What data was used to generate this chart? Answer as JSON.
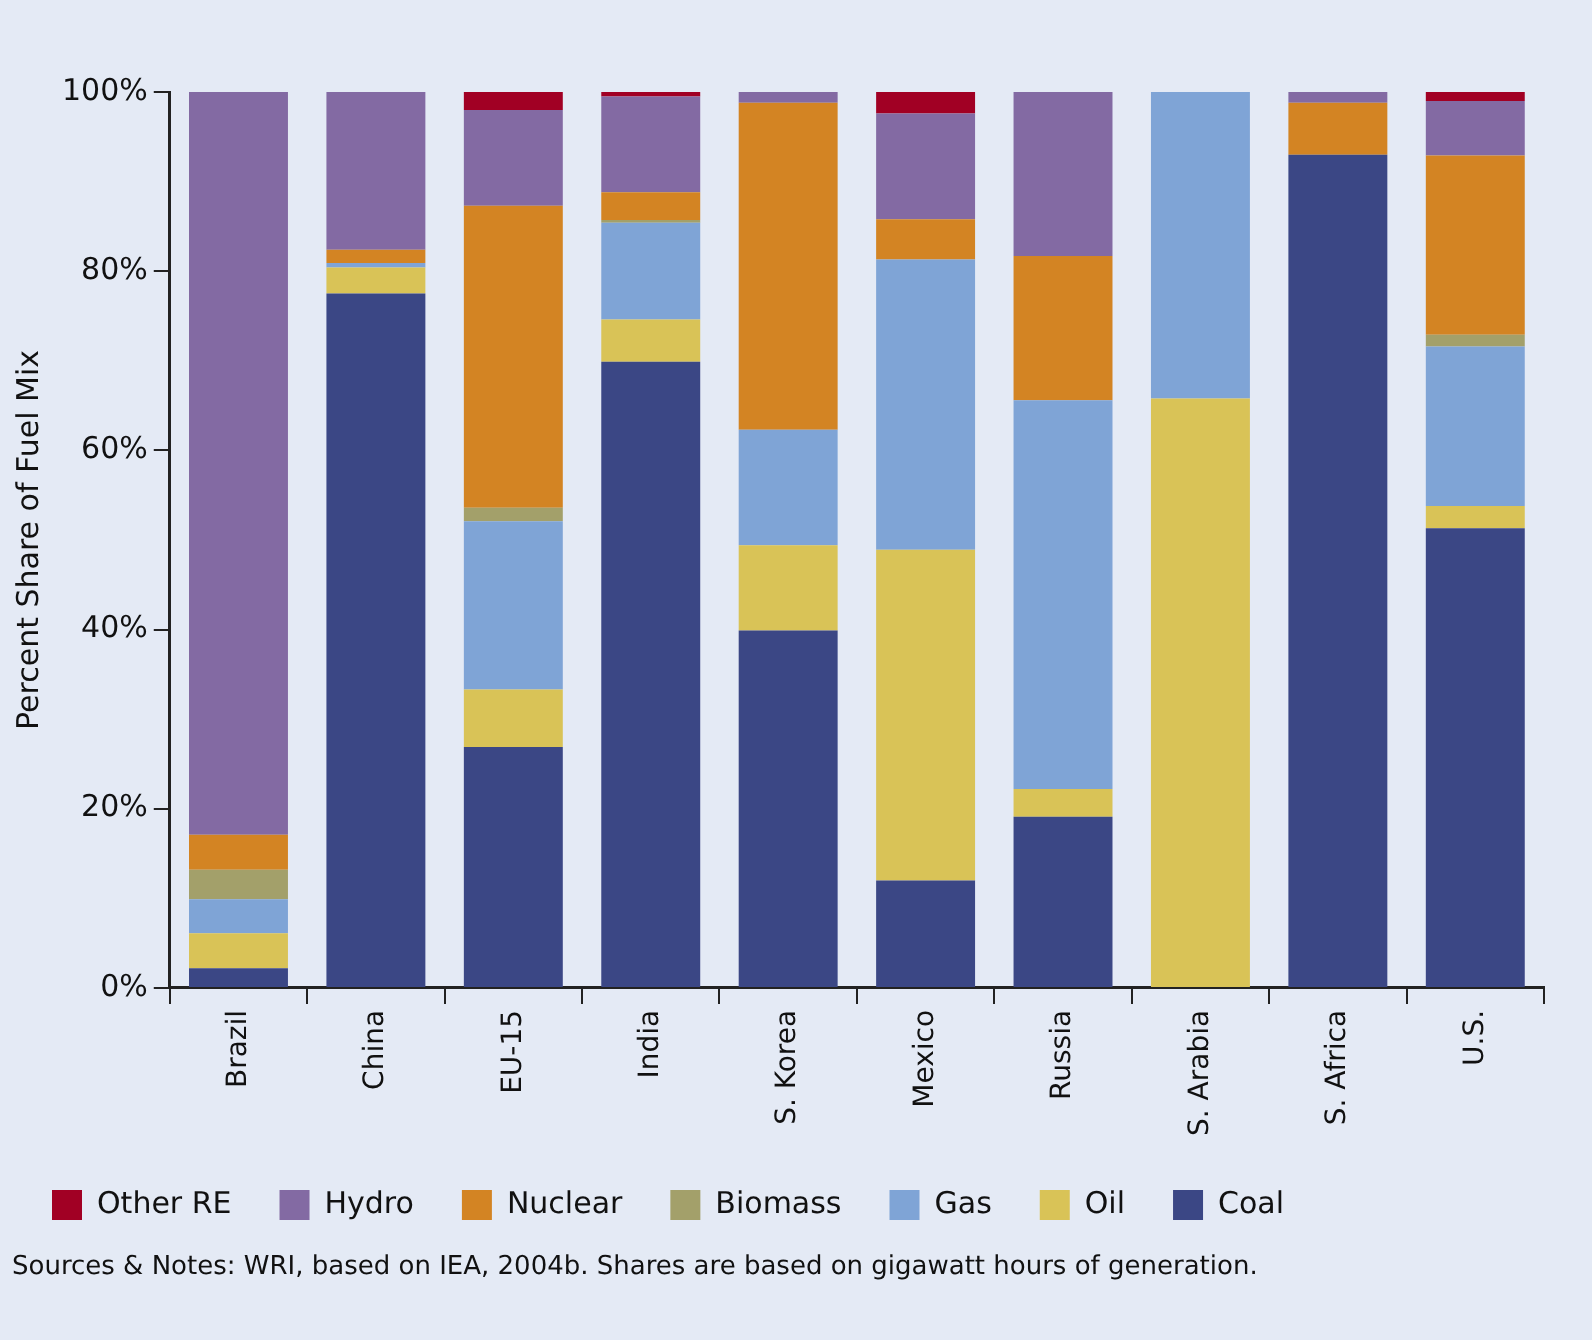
{
  "chart_data": {
    "type": "bar",
    "stacked": true,
    "ylabel": "Percent Share of Fuel Mix",
    "categories": [
      "Brazil",
      "China",
      "EU-15",
      "India",
      "S. Korea",
      "Mexico",
      "Russia",
      "S. Arabia",
      "S. Africa",
      "U.S."
    ],
    "series": [
      {
        "name": "Coal",
        "color": "#3b4785",
        "values": [
          2.2,
          77.5,
          26.9,
          69.9,
          39.9,
          12.0,
          19.1,
          0,
          93.0,
          51.3
        ]
      },
      {
        "name": "Oil",
        "color": "#d9c357",
        "values": [
          3.9,
          2.9,
          6.4,
          4.7,
          9.5,
          36.9,
          3.1,
          65.8,
          0,
          2.5
        ]
      },
      {
        "name": "Gas",
        "color": "#7fa4d6",
        "values": [
          3.8,
          0.5,
          18.8,
          10.8,
          12.9,
          32.4,
          43.4,
          34.2,
          0,
          17.8
        ]
      },
      {
        "name": "Biomass",
        "color": "#a3a06a",
        "values": [
          3.3,
          0,
          1.5,
          0.3,
          0,
          0,
          0,
          0,
          0,
          1.3
        ]
      },
      {
        "name": "Nuclear",
        "color": "#d38423",
        "values": [
          3.9,
          1.5,
          33.7,
          3.1,
          36.5,
          4.5,
          16.1,
          0,
          5.8,
          20.0
        ]
      },
      {
        "name": "Hydro",
        "color": "#836aa3",
        "values": [
          82.9,
          17.6,
          10.7,
          10.7,
          1.2,
          11.8,
          18.3,
          0,
          1.2,
          6.1
        ]
      },
      {
        "name": "Other RE",
        "color": "#a10024",
        "values": [
          0,
          0,
          2.0,
          0.5,
          0,
          2.4,
          0,
          0,
          0,
          1.0
        ]
      }
    ],
    "ylim": [
      0,
      100
    ],
    "yticks": [
      {
        "value": 0,
        "label": "0%"
      },
      {
        "value": 20,
        "label": "20%"
      },
      {
        "value": 40,
        "label": "40%"
      },
      {
        "value": 60,
        "label": "60%"
      },
      {
        "value": 80,
        "label": "80%"
      },
      {
        "value": 100,
        "label": "100%"
      }
    ],
    "grid": false,
    "legend": "bottom",
    "annotations": [
      "Sources & Notes: WRI, based on IEA, 2004b. Shares are based on gigawatt hours of generation."
    ]
  }
}
